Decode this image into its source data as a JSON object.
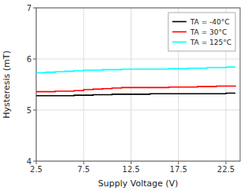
{
  "chart_data": {
    "type": "line",
    "xlabel": "Supply Voltage (V)",
    "ylabel": "Hysteresis (mT)",
    "xlim": [
      2.5,
      24.0
    ],
    "ylim": [
      4.0,
      7.0
    ],
    "xticks": [
      2.5,
      7.5,
      12.5,
      17.5,
      22.5
    ],
    "yticks": [
      4,
      5,
      6,
      7
    ],
    "grid": true,
    "legend": "upper right",
    "line_style": "steps",
    "x": [
      2.5,
      3.5,
      4.5,
      5.5,
      6.5,
      7.5,
      8.5,
      9.5,
      10.5,
      11.5,
      12.5,
      13.5,
      14.5,
      15.5,
      16.5,
      17.5,
      18.5,
      19.5,
      20.5,
      21.5,
      22.5,
      23.5
    ],
    "series": [
      {
        "name": "TA = -40°C",
        "color": "#000000",
        "values": [
          5.28,
          5.28,
          5.28,
          5.28,
          5.29,
          5.29,
          5.3,
          5.3,
          5.31,
          5.31,
          5.31,
          5.31,
          5.32,
          5.32,
          5.32,
          5.32,
          5.32,
          5.32,
          5.32,
          5.32,
          5.33,
          5.33
        ]
      },
      {
        "name": "TA = 30°C",
        "color": "#ff0000",
        "values": [
          5.36,
          5.36,
          5.37,
          5.37,
          5.38,
          5.4,
          5.41,
          5.42,
          5.43,
          5.44,
          5.44,
          5.44,
          5.44,
          5.44,
          5.45,
          5.45,
          5.45,
          5.46,
          5.46,
          5.47,
          5.47,
          5.48
        ]
      },
      {
        "name": "TA = 125°C",
        "color": "#00ffff",
        "values": [
          5.73,
          5.74,
          5.75,
          5.76,
          5.77,
          5.78,
          5.78,
          5.79,
          5.79,
          5.8,
          5.8,
          5.8,
          5.8,
          5.8,
          5.81,
          5.81,
          5.82,
          5.82,
          5.83,
          5.83,
          5.84,
          5.84
        ]
      }
    ]
  }
}
